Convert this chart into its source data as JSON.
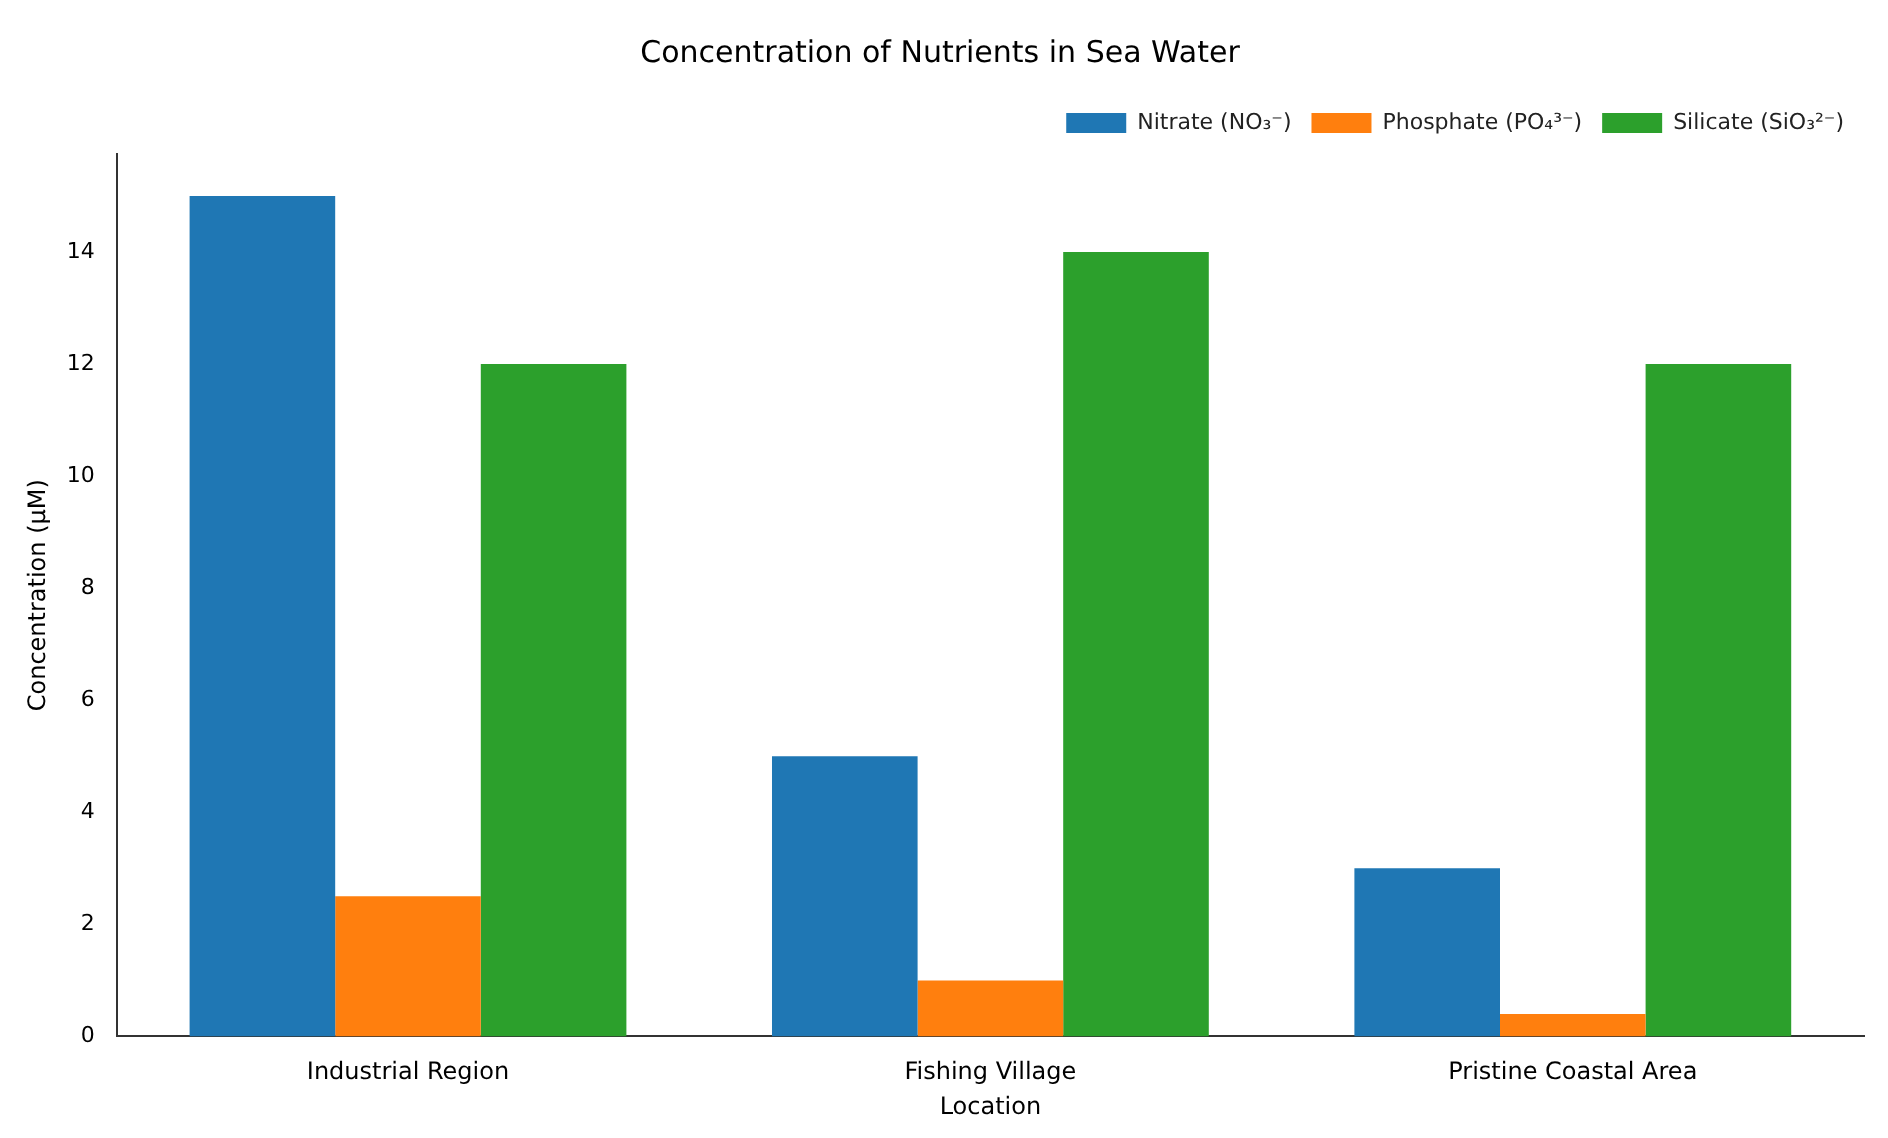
{
  "chart_data": {
    "type": "bar",
    "title": "Concentration of Nutrients in Sea Water",
    "xlabel": "Location",
    "ylabel": "Concentration (µM)",
    "categories": [
      "Industrial Region",
      "Fishing Village",
      "Pristine Coastal Area"
    ],
    "series": [
      {
        "name": "Nitrate (NO₃⁻)",
        "color": "#1f77b4",
        "values": [
          15,
          5,
          3
        ]
      },
      {
        "name": "Phosphate (PO₄³⁻)",
        "color": "#ff7f0e",
        "values": [
          2.5,
          1,
          0.4
        ]
      },
      {
        "name": "Silicate (SiO₃²⁻)",
        "color": "#2ca02c",
        "values": [
          12,
          14,
          12
        ]
      }
    ],
    "ylim": [
      0,
      15.75
    ],
    "yticks": [
      0,
      2,
      4,
      6,
      8,
      10,
      12,
      14
    ],
    "grid": false,
    "legend": "top right"
  }
}
